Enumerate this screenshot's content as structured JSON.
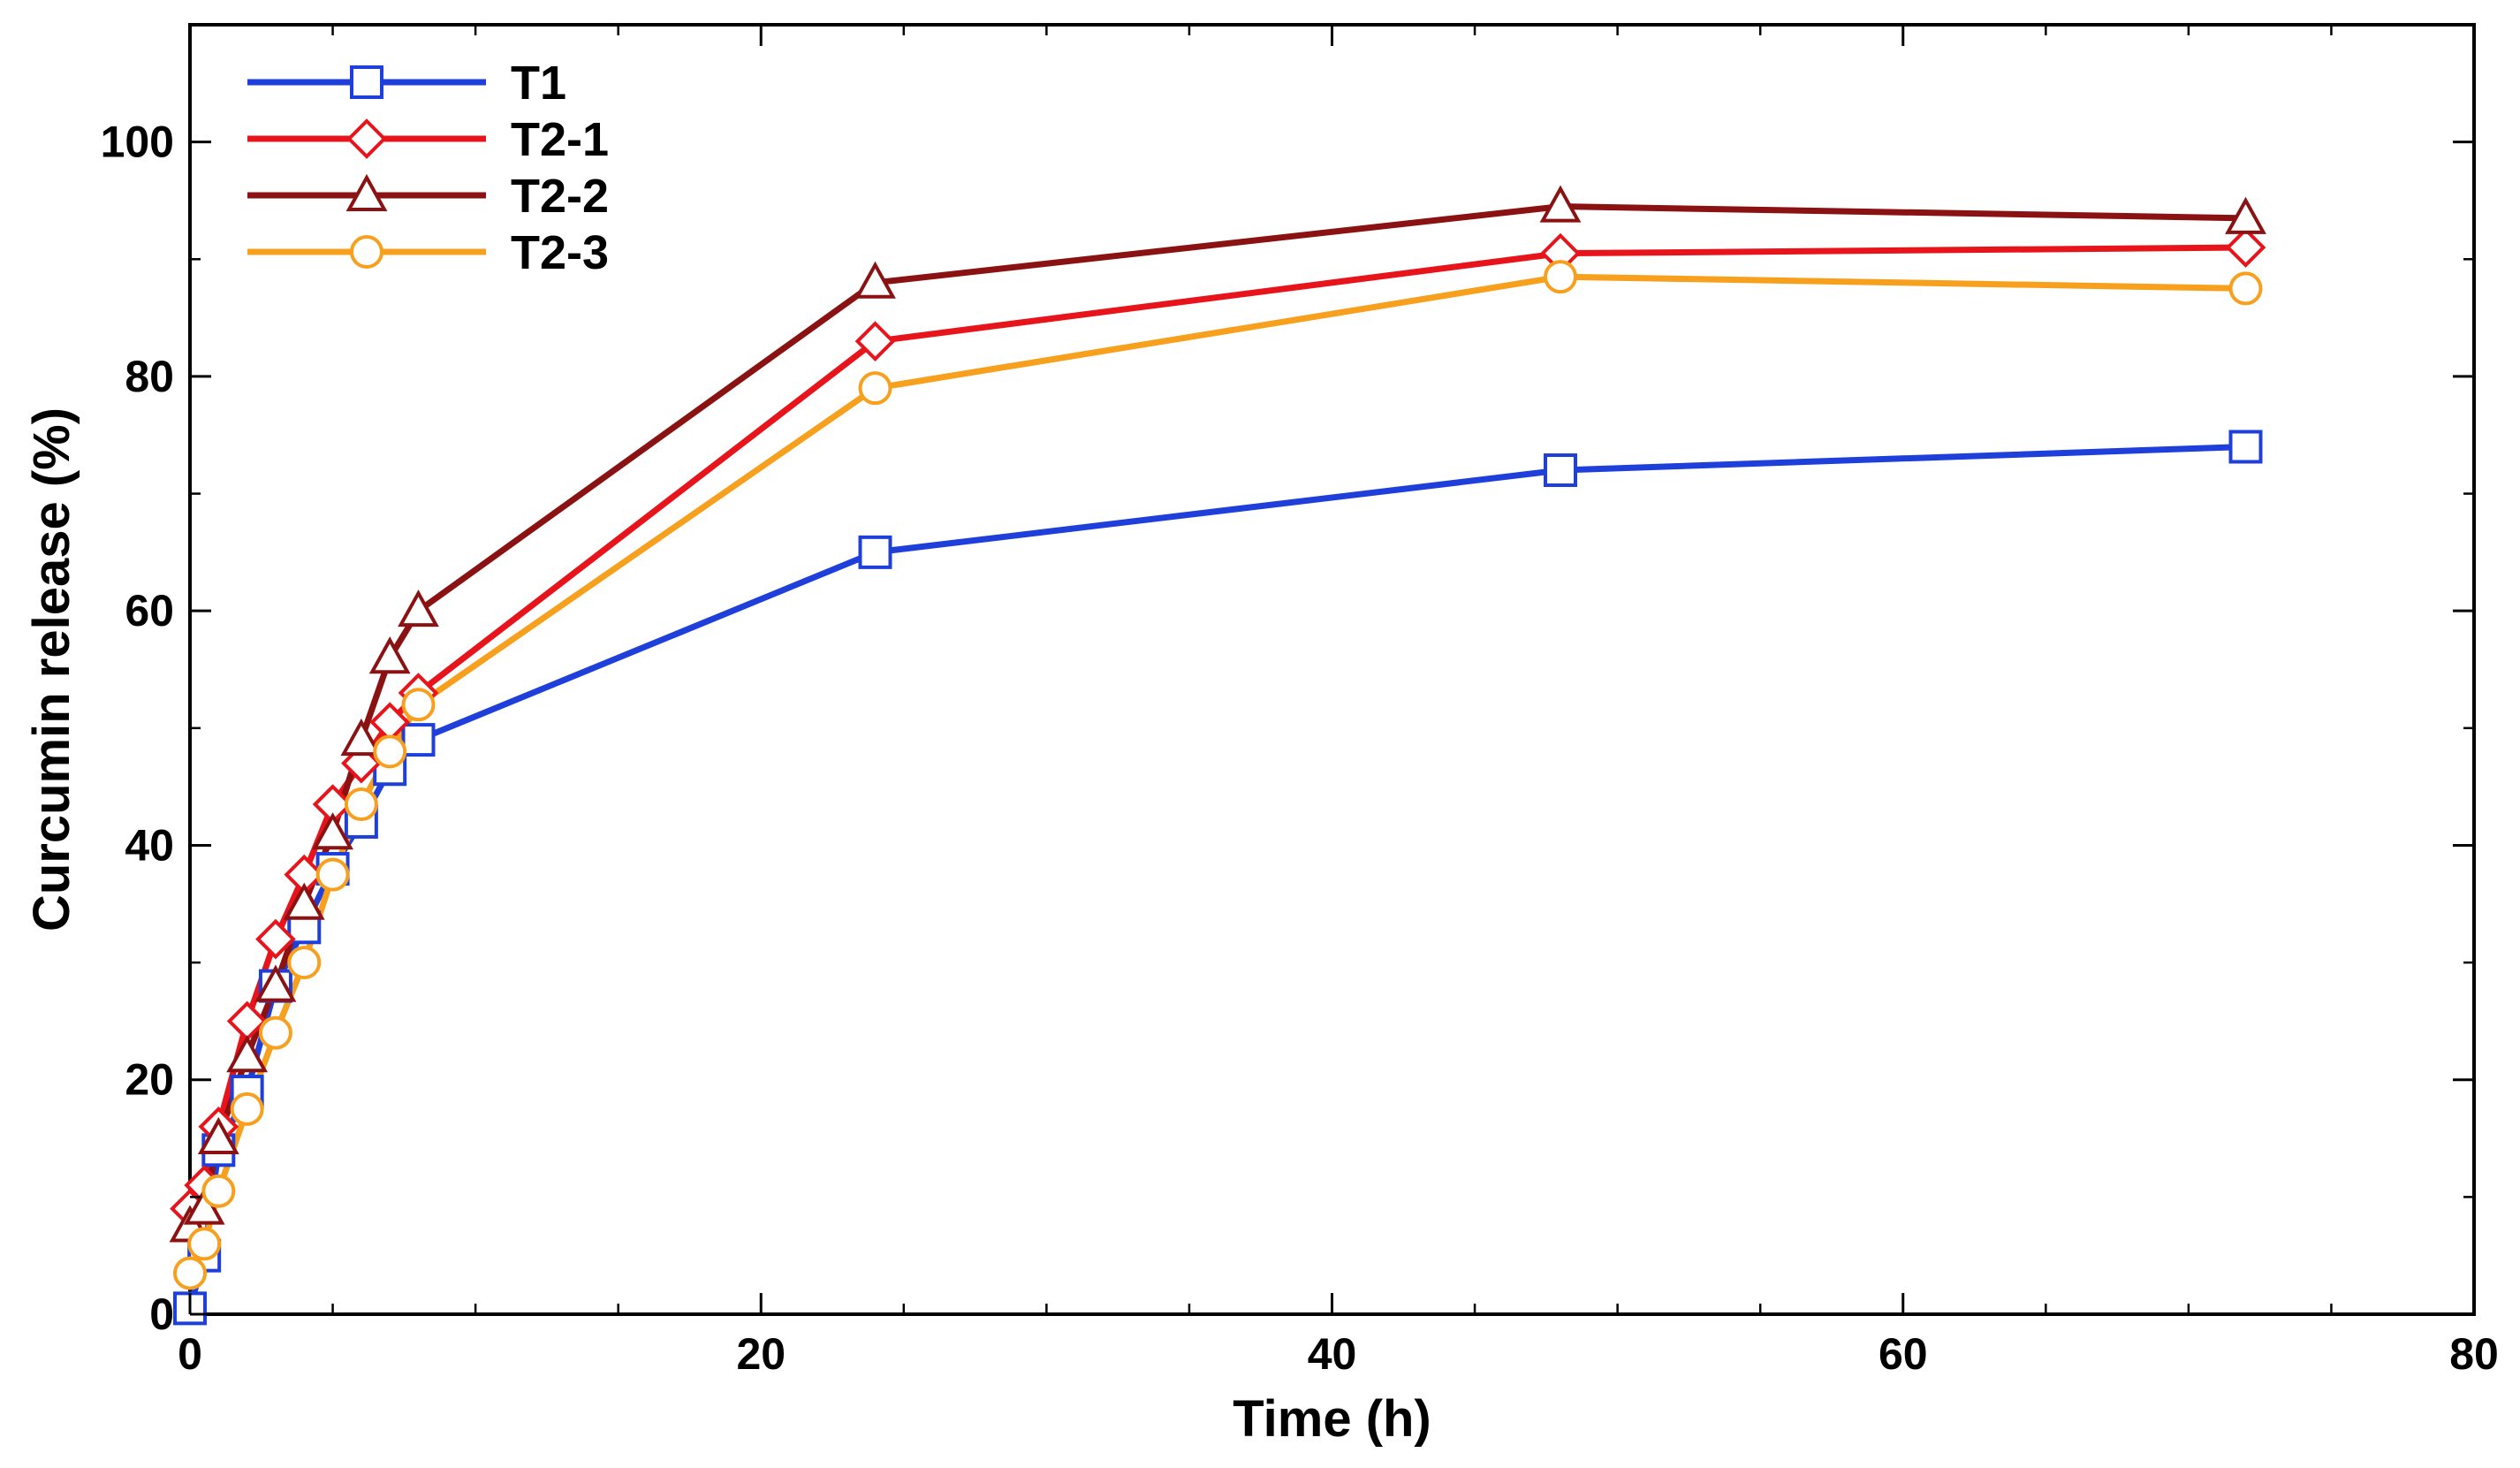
{
  "chart_data": {
    "type": "line",
    "title": "",
    "xlabel": "Time (h)",
    "ylabel": "Curcumin release (%)",
    "xlim": [
      0,
      80
    ],
    "ylim": [
      0,
      110
    ],
    "xticks": [
      0,
      20,
      40,
      60,
      80
    ],
    "yticks": [
      0,
      20,
      40,
      60,
      80,
      100
    ],
    "x_tick_labels": [
      "0",
      "20",
      "40",
      "60",
      "80"
    ],
    "y_tick_labels": [
      "0",
      "20",
      "40",
      "60",
      "80",
      "100"
    ],
    "grid": false,
    "legend_position": "top-left",
    "series": [
      {
        "name": "T1",
        "color": "#1f3fdb",
        "marker": "square",
        "x": [
          0,
          0.5,
          1,
          2,
          3,
          4,
          5,
          6,
          7,
          8,
          24,
          48,
          72
        ],
        "values": [
          0.5,
          5,
          14,
          19,
          28,
          33,
          38,
          42,
          46.5,
          49,
          65,
          72,
          74
        ]
      },
      {
        "name": "T2-1",
        "color": "#e8141b",
        "marker": "diamond",
        "x": [
          0,
          0.5,
          1,
          2,
          3,
          4,
          5,
          6,
          7,
          8,
          24,
          48,
          72
        ],
        "values": [
          9,
          11,
          16,
          25,
          32,
          37.5,
          43.5,
          47,
          50.5,
          53,
          83,
          90.5,
          91
        ]
      },
      {
        "name": "T2-2",
        "color": "#8b1212",
        "marker": "triangle",
        "x": [
          0,
          0.5,
          1,
          2,
          3,
          4,
          5,
          6,
          7,
          8,
          24,
          48,
          72
        ],
        "values": [
          7.5,
          9,
          15,
          22,
          28,
          35,
          41,
          49,
          56,
          60,
          88,
          94.5,
          93.5
        ]
      },
      {
        "name": "T2-3",
        "color": "#f7a01e",
        "marker": "circle",
        "x": [
          0,
          0.5,
          1,
          2,
          3,
          4,
          5,
          6,
          7,
          8,
          24,
          48,
          72
        ],
        "values": [
          3.5,
          6,
          10.5,
          17.5,
          24,
          30,
          37.5,
          43.5,
          48,
          52,
          79,
          88.5,
          87.5
        ]
      }
    ]
  }
}
